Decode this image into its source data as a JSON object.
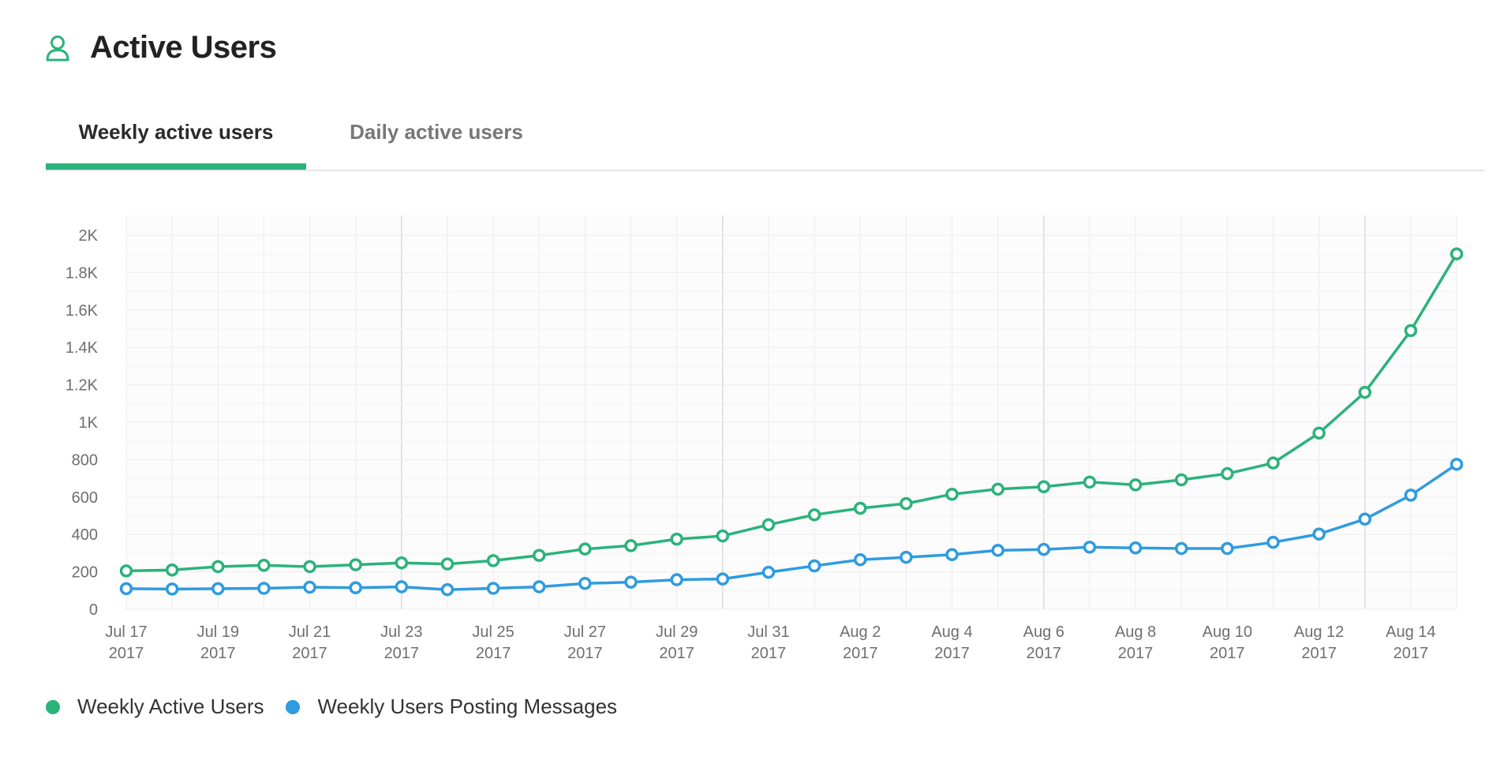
{
  "header": {
    "title": "Active Users",
    "icon": "user-icon"
  },
  "tabs": [
    {
      "label": "Weekly active users",
      "active": true
    },
    {
      "label": "Daily active users",
      "active": false
    }
  ],
  "colors": {
    "accent": "#2bb27b",
    "series_green": "#2bb27b",
    "series_blue": "#2f9be0"
  },
  "legend": [
    {
      "label": "Weekly Active Users",
      "color": "#2bb27b"
    },
    {
      "label": "Weekly Users Posting Messages",
      "color": "#2f9be0"
    }
  ],
  "chart_data": {
    "type": "line",
    "x": [
      "2017-07-17",
      "2017-07-18",
      "2017-07-19",
      "2017-07-20",
      "2017-07-21",
      "2017-07-22",
      "2017-07-23",
      "2017-07-24",
      "2017-07-25",
      "2017-07-26",
      "2017-07-27",
      "2017-07-28",
      "2017-07-29",
      "2017-07-30",
      "2017-07-31",
      "2017-08-01",
      "2017-08-02",
      "2017-08-03",
      "2017-08-04",
      "2017-08-05",
      "2017-08-06",
      "2017-08-07",
      "2017-08-08",
      "2017-08-09",
      "2017-08-10",
      "2017-08-11",
      "2017-08-12",
      "2017-08-13",
      "2017-08-14",
      "2017-08-15"
    ],
    "x_ticks": [
      {
        "line1": "Jul 17",
        "line2": "2017"
      },
      {
        "line1": "Jul 19",
        "line2": "2017"
      },
      {
        "line1": "Jul 21",
        "line2": "2017"
      },
      {
        "line1": "Jul 23",
        "line2": "2017"
      },
      {
        "line1": "Jul 25",
        "line2": "2017"
      },
      {
        "line1": "Jul 27",
        "line2": "2017"
      },
      {
        "line1": "Jul 29",
        "line2": "2017"
      },
      {
        "line1": "Jul 31",
        "line2": "2017"
      },
      {
        "line1": "Aug 2",
        "line2": "2017"
      },
      {
        "line1": "Aug 4",
        "line2": "2017"
      },
      {
        "line1": "Aug 6",
        "line2": "2017"
      },
      {
        "line1": "Aug 8",
        "line2": "2017"
      },
      {
        "line1": "Aug 10",
        "line2": "2017"
      },
      {
        "line1": "Aug 12",
        "line2": "2017"
      },
      {
        "line1": "Aug 14",
        "line2": "2017"
      }
    ],
    "y_ticks": [
      {
        "value": 0,
        "label": "0"
      },
      {
        "value": 200,
        "label": "200"
      },
      {
        "value": 400,
        "label": "400"
      },
      {
        "value": 600,
        "label": "600"
      },
      {
        "value": 800,
        "label": "800"
      },
      {
        "value": 1000,
        "label": "1K"
      },
      {
        "value": 1200,
        "label": "1.2K"
      },
      {
        "value": 1400,
        "label": "1.4K"
      },
      {
        "value": 1600,
        "label": "1.6K"
      },
      {
        "value": 1800,
        "label": "1.8K"
      },
      {
        "value": 2000,
        "label": "2K"
      }
    ],
    "ylim": [
      0,
      2000
    ],
    "grid": true,
    "legend_position": "bottom-left",
    "series": [
      {
        "name": "Weekly Active Users",
        "color": "#2bb27b",
        "values": [
          205,
          210,
          228,
          235,
          228,
          238,
          248,
          242,
          260,
          288,
          322,
          340,
          375,
          392,
          452,
          505,
          540,
          565,
          615,
          642,
          655,
          680,
          665,
          692,
          725,
          782,
          942,
          1160,
          1490,
          1900
        ]
      },
      {
        "name": "Weekly Users Posting Messages",
        "color": "#2f9be0",
        "values": [
          110,
          108,
          110,
          112,
          118,
          115,
          120,
          105,
          112,
          120,
          138,
          145,
          158,
          162,
          198,
          232,
          265,
          278,
          292,
          315,
          320,
          332,
          328,
          325,
          325,
          358,
          402,
          482,
          610,
          775
        ]
      }
    ]
  }
}
